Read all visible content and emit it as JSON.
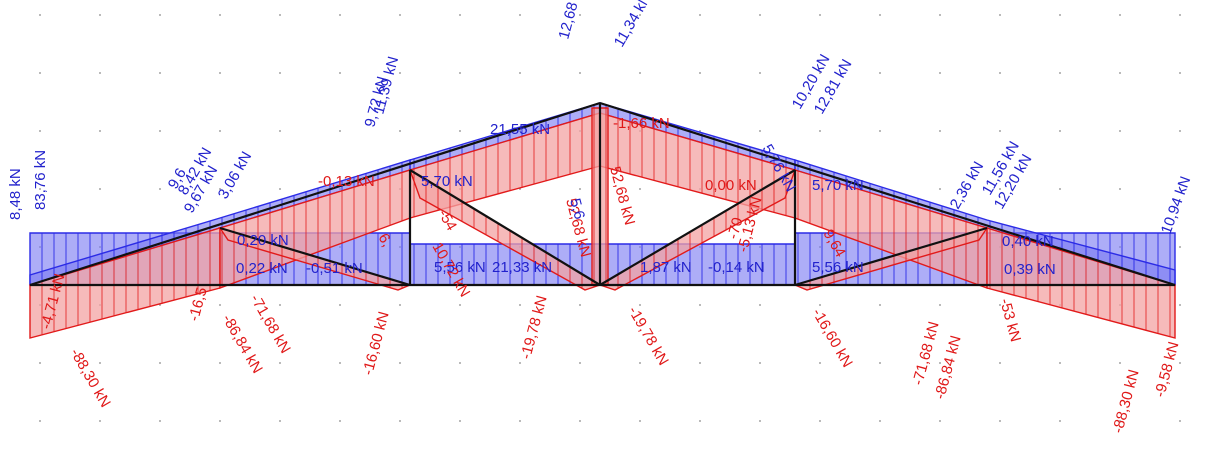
{
  "diagram": {
    "type": "truss-axial-force-diagram",
    "colors": {
      "compression_fill": "#7b7bf2",
      "compression_stroke": "#2b2be6",
      "tension_fill": "#f3a3a3",
      "tension_stroke": "#e21a1a",
      "member": "#111111",
      "grid_dot": "#8a8a8a"
    },
    "labels": [
      "12,68 kN",
      "11,34 kN",
      "10,20 kN",
      "12,81 kN",
      "5,76 kN",
      "11,39 kN",
      "9,72 kN",
      "8,42 kN",
      "9,6",
      "9,67 kN",
      "3,06 kN",
      "83,76 kN",
      "8,48 kN",
      "11,56 kN",
      "12,20 kN",
      "2,36 kN",
      "10,94 kN",
      "21,55 kN",
      "-1,66 kN",
      "-0,13 kN",
      "5,70 kN",
      "0,00 kN",
      "5,70 kN",
      "0,20 kN",
      "0,22 kN",
      "-0,51 kN",
      "5,56 kN",
      "21,33 kN",
      "1,87 kN",
      "-0,14 kN",
      "5,56 kN",
      "0,40 kN",
      "0,39 kN",
      "-4,71 kN",
      "-88,30 kN",
      "-16,5",
      "-86,84 kN",
      "-71,68 kN",
      "-16,60 kN",
      "10,72 kN",
      "-54",
      "-19,78 kN",
      "-19,78 kN",
      "52,68 kN",
      "52,68 kN",
      "5,6",
      "-70",
      "-16,60 kN",
      "-71,68 kN",
      "-86,84 kN",
      "-53 kN",
      "-88,30 kN",
      "-9,58 kN",
      "9,64",
      "-5,13 kN",
      "6,"
    ]
  }
}
